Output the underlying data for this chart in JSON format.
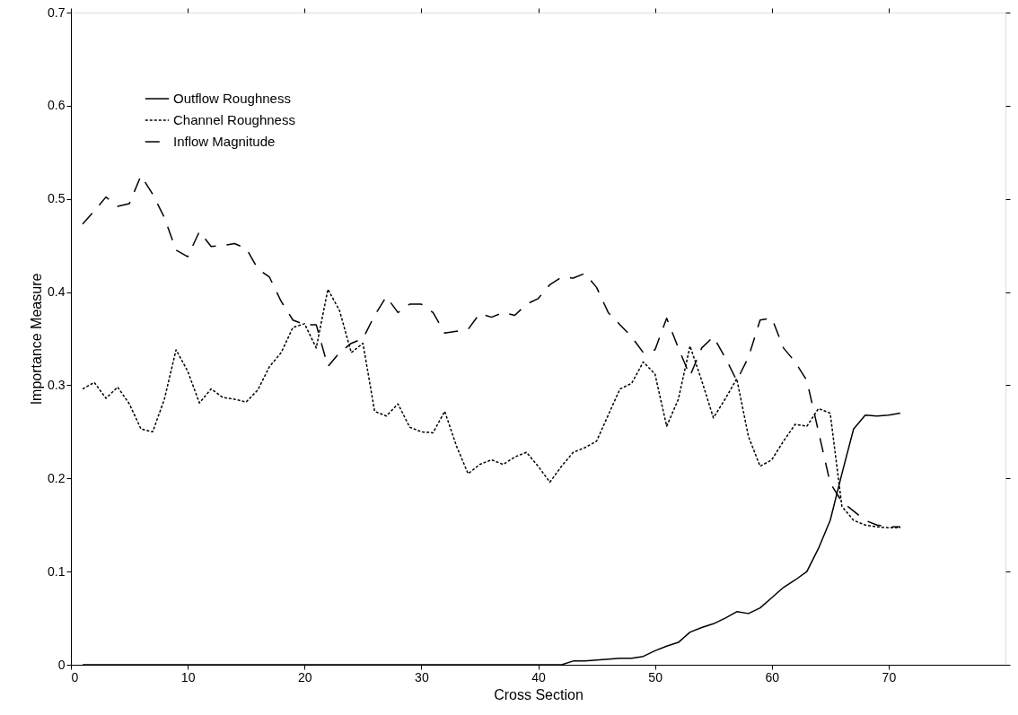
{
  "chart_data": {
    "type": "line",
    "xlabel": "Cross Section",
    "ylabel": "Importance Measure",
    "x": [
      1,
      2,
      3,
      4,
      5,
      6,
      7,
      8,
      9,
      10,
      11,
      12,
      13,
      14,
      15,
      16,
      17,
      18,
      19,
      20,
      21,
      22,
      23,
      24,
      25,
      26,
      27,
      28,
      29,
      30,
      31,
      32,
      33,
      34,
      35,
      36,
      37,
      38,
      39,
      40,
      41,
      42,
      43,
      44,
      45,
      46,
      47,
      48,
      49,
      50,
      51,
      52,
      53,
      54,
      55,
      56,
      57,
      58,
      59,
      60,
      61,
      62,
      63,
      64,
      65,
      66,
      67,
      68,
      69,
      70,
      71
    ],
    "series": [
      {
        "name": "Outflow Roughness",
        "color": "#000000",
        "line_style": "solid",
        "values": [
          0,
          0,
          0,
          0,
          0,
          0,
          0,
          0,
          0,
          0,
          0,
          0,
          0,
          0,
          0,
          0,
          0,
          0,
          0,
          0,
          0,
          0,
          0,
          0,
          0,
          0,
          0,
          0,
          0,
          0,
          0,
          0,
          0,
          0,
          0,
          0,
          0,
          0,
          0,
          0,
          0,
          0,
          0.004,
          0.004,
          0.005,
          0.006,
          0.007,
          0.007,
          0.009,
          0.015,
          0.02,
          0.024,
          0.035,
          0.04,
          0.044,
          0.05,
          0.057,
          0.055,
          0.061,
          0.072,
          0.083,
          0.091,
          0.1,
          0.125,
          0.155,
          0.205,
          0.253,
          0.268,
          0.267,
          0.268,
          0.27
        ]
      },
      {
        "name": "Channel Roughness",
        "color": "#000000",
        "line_style": "dotted",
        "values": [
          0.296,
          0.303,
          0.286,
          0.298,
          0.28,
          0.253,
          0.25,
          0.285,
          0.338,
          0.315,
          0.281,
          0.296,
          0.287,
          0.285,
          0.282,
          0.295,
          0.32,
          0.335,
          0.362,
          0.366,
          0.34,
          0.403,
          0.38,
          0.335,
          0.345,
          0.272,
          0.267,
          0.28,
          0.255,
          0.25,
          0.249,
          0.272,
          0.235,
          0.205,
          0.215,
          0.22,
          0.215,
          0.223,
          0.228,
          0.213,
          0.196,
          0.213,
          0.228,
          0.233,
          0.24,
          0.268,
          0.296,
          0.302,
          0.325,
          0.312,
          0.256,
          0.285,
          0.342,
          0.305,
          0.265,
          0.285,
          0.307,
          0.245,
          0.213,
          0.22,
          0.24,
          0.258,
          0.256,
          0.275,
          0.27,
          0.17,
          0.155,
          0.15,
          0.148,
          0.147,
          0.147
        ]
      },
      {
        "name": "Inflow Magnitude",
        "color": "#000000",
        "line_style": "dashed",
        "values": [
          0.473,
          0.487,
          0.502,
          0.492,
          0.495,
          0.525,
          0.505,
          0.48,
          0.445,
          0.438,
          0.465,
          0.449,
          0.45,
          0.452,
          0.447,
          0.425,
          0.416,
          0.39,
          0.37,
          0.365,
          0.365,
          0.32,
          0.335,
          0.345,
          0.35,
          0.375,
          0.395,
          0.378,
          0.387,
          0.387,
          0.378,
          0.356,
          0.358,
          0.36,
          0.377,
          0.373,
          0.378,
          0.375,
          0.387,
          0.393,
          0.408,
          0.416,
          0.415,
          0.42,
          0.405,
          0.378,
          0.365,
          0.352,
          0.335,
          0.338,
          0.372,
          0.34,
          0.31,
          0.34,
          0.352,
          0.33,
          0.305,
          0.33,
          0.37,
          0.372,
          0.34,
          0.325,
          0.305,
          0.25,
          0.195,
          0.175,
          0.165,
          0.155,
          0.15,
          0.148,
          0.148
        ]
      }
    ],
    "xlim": [
      0,
      80
    ],
    "xticks": [
      0,
      10,
      20,
      30,
      40,
      50,
      60,
      70
    ],
    "ylim": [
      0,
      0.7
    ],
    "yticks": [
      {
        "value": 0,
        "label": "0"
      },
      0.1,
      0.2,
      0.3,
      0.4,
      0.5,
      0.6,
      0.7
    ],
    "grid": false,
    "legend": "top left",
    "marker": "none"
  }
}
